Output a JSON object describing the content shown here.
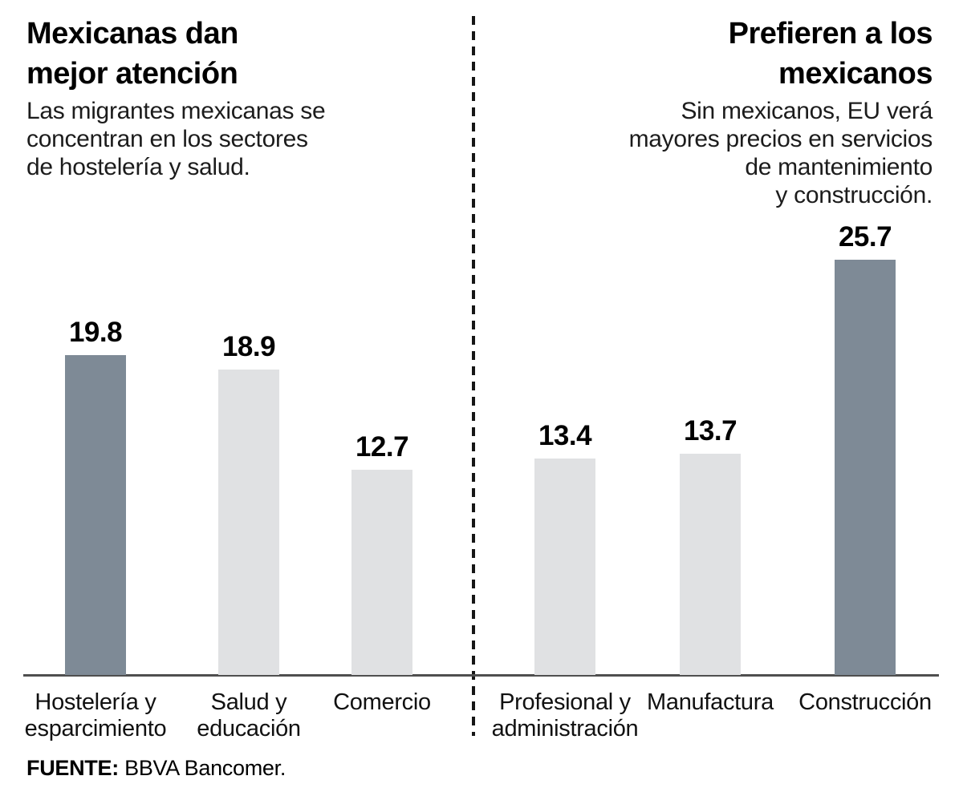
{
  "chart_data": [
    {
      "type": "bar",
      "panel": "left",
      "title": "Mexicanas dan\nmejor atención",
      "subtitle": "Las migrantes mexicanas se\nconcentran en los sectores\nde hostelería y salud.",
      "categories": [
        "Hostelería y\nesparcimiento",
        "Salud y\neducación",
        "Comercio"
      ],
      "values": [
        19.8,
        18.9,
        12.7
      ],
      "highlight_index": 0,
      "xlabel": "",
      "ylabel": "",
      "ylim": [
        0,
        27
      ],
      "grid": false,
      "legend": "none",
      "axis_style": "baseline only, no ticks, value labels above bars"
    },
    {
      "type": "bar",
      "panel": "right",
      "title": "Prefieren a los\nmexicanos",
      "subtitle": "Sin mexicanos, EU verá\nmayores precios en servicios\nde mantenimiento\ny construcción.",
      "categories": [
        "Profesional y\nadministración",
        "Manufactura",
        "Construcción"
      ],
      "values": [
        13.4,
        13.7,
        25.7
      ],
      "highlight_index": 2,
      "xlabel": "",
      "ylabel": "",
      "ylim": [
        0,
        27
      ],
      "grid": false,
      "legend": "none",
      "axis_style": "baseline only, no ticks, value labels above bars"
    }
  ],
  "source": {
    "label": "FUENTE:",
    "text": "BBVA Bancomer."
  },
  "colors": {
    "bar_highlight": "#7e8a96",
    "bar_normal": "#e0e1e3",
    "baseline": "#4f4f4f",
    "divider_dash": "#161616",
    "text": "#000000"
  }
}
